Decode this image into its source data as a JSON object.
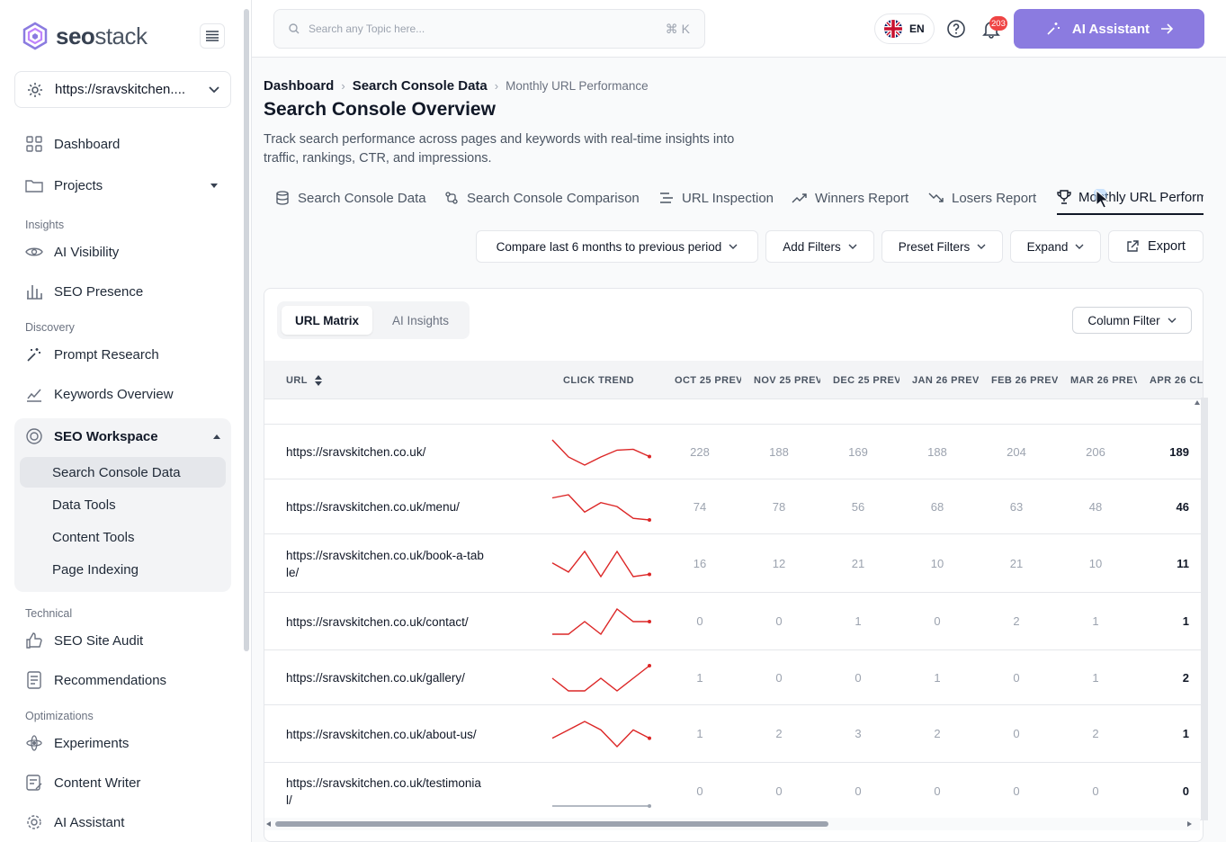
{
  "brand": {
    "name_bold": "seo",
    "name_light": "stack",
    "accent": "#8b7be0"
  },
  "sidebar": {
    "site": "https://sravskitchen....",
    "items": {
      "dashboard": "Dashboard",
      "projects": "Projects",
      "ai_visibility": "AI Visibility",
      "seo_presence": "SEO Presence",
      "prompt_research": "Prompt Research",
      "keywords_overview": "Keywords Overview",
      "seo_site_audit": "SEO Site Audit",
      "recommendations": "Recommendations",
      "experiments": "Experiments",
      "content_writer": "Content Writer",
      "ai_assistant": "AI Assistant"
    },
    "sections": {
      "insights": "Insights",
      "discovery": "Discovery",
      "technical": "Technical",
      "optimizations": "Optimizations"
    },
    "workspace": {
      "title": "SEO Workspace",
      "sub": [
        "Search Console Data",
        "Data Tools",
        "Content Tools",
        "Page Indexing"
      ]
    }
  },
  "topbar": {
    "search_placeholder": "Search any Topic here...",
    "shortcut": "⌘ K",
    "lang": "EN",
    "notifications": "203",
    "ai_button": "AI Assistant"
  },
  "breadcrumb": [
    "Dashboard",
    "Search Console Data",
    "Monthly URL Performance"
  ],
  "page": {
    "title": "Search Console Overview",
    "description": "Track search performance across pages and keywords with real-time insights into traffic, rankings, CTR, and impressions."
  },
  "tabs": [
    "Search Console Data",
    "Search Console Comparison",
    "URL Inspection",
    "Winners Report",
    "Losers Report",
    "Monthly URL Perform"
  ],
  "toolbar": {
    "compare": "Compare last 6 months to previous period",
    "add_filters": "Add Filters",
    "preset_filters": "Preset Filters",
    "expand": "Expand",
    "export": "Export"
  },
  "card": {
    "seg": [
      "URL Matrix",
      "AI Insights"
    ],
    "column_filter": "Column Filter"
  },
  "table": {
    "headers": [
      "URL",
      "CLICK TREND",
      "OCT 25 PREV",
      "NOV 25 PREV",
      "DEC 25 PREV",
      "JAN 26 PREV",
      "FEB 26 PREV",
      "MAR 26 PREV",
      "APR 26 CL"
    ],
    "rows": [
      {
        "url": "https://sravskitchen.co.uk/",
        "values": [
          "228",
          "188",
          "169",
          "188",
          "204",
          "206"
        ],
        "current": "189"
      },
      {
        "url": "https://sravskitchen.co.uk/menu/",
        "values": [
          "74",
          "78",
          "56",
          "68",
          "63",
          "48"
        ],
        "current": "46"
      },
      {
        "url": "https://sravskitchen.co.uk/book-a-table/",
        "values": [
          "16",
          "12",
          "21",
          "10",
          "21",
          "10"
        ],
        "current": "11"
      },
      {
        "url": "https://sravskitchen.co.uk/contact/",
        "values": [
          "0",
          "0",
          "1",
          "0",
          "2",
          "1"
        ],
        "current": "1"
      },
      {
        "url": "https://sravskitchen.co.uk/gallery/",
        "values": [
          "1",
          "0",
          "0",
          "1",
          "0",
          "1"
        ],
        "current": "2"
      },
      {
        "url": "https://sravskitchen.co.uk/about-us/",
        "values": [
          "1",
          "2",
          "3",
          "2",
          "0",
          "2"
        ],
        "current": "1"
      },
      {
        "url": "https://sravskitchen.co.uk/testimonial/",
        "values": [
          "0",
          "0",
          "0",
          "0",
          "0",
          "0"
        ],
        "current": "0"
      }
    ]
  }
}
